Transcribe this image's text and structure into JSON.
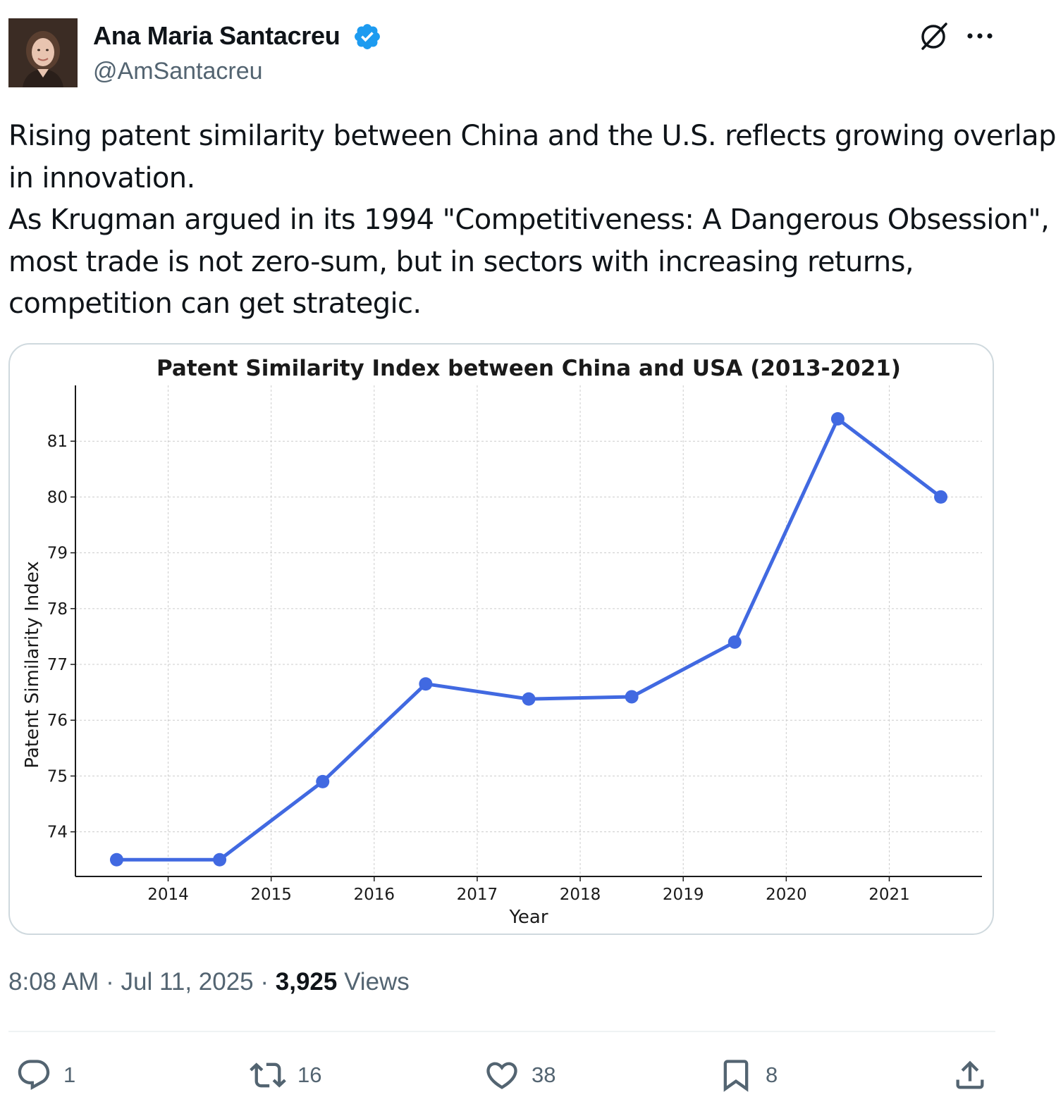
{
  "author": {
    "display_name": "Ana Maria Santacreu",
    "handle": "@AmSantacreu",
    "verified": true,
    "verified_color": "#1d9bf0"
  },
  "tweet": {
    "lines": [
      "Rising patent similarity between China and the U.S. reflects growing overlap",
      "in innovation.",
      "As Krugman argued in its 1994 \"Competitiveness: A Dangerous Obsession\",",
      "most trade is not zero-sum, but in sectors with increasing returns,",
      "competition can get strategic."
    ]
  },
  "meta": {
    "time": "8:08 AM",
    "separator": " · ",
    "date": "Jul 11, 2025",
    "views_count": "3,925",
    "views_label": "Views"
  },
  "actions": {
    "reply_count": "1",
    "repost_count": "16",
    "like_count": "38",
    "bookmark_count": "8"
  },
  "icons": {
    "grok": "grok-icon",
    "more": "more-icon",
    "reply": "reply-icon",
    "repost": "repost-icon",
    "like": "heart-icon",
    "bookmark": "bookmark-icon",
    "share": "share-icon"
  },
  "colors": {
    "text": "#0f1419",
    "secondary": "#536471",
    "line": "#4169e1"
  },
  "chart_data": {
    "type": "line",
    "title": "Patent Similarity Index between China and USA (2013-2021)",
    "xlabel": "Year",
    "ylabel": "Patent Similarity Index",
    "x": [
      2013.5,
      2014.5,
      2015.5,
      2016.5,
      2017.5,
      2018.5,
      2019.5,
      2020.5,
      2021.5
    ],
    "series": [
      {
        "name": "Patent Similarity Index",
        "values": [
          73.5,
          73.5,
          74.9,
          76.65,
          76.38,
          76.42,
          77.4,
          81.4,
          80.0
        ]
      }
    ],
    "xticks": [
      2014,
      2015,
      2016,
      2017,
      2018,
      2019,
      2020,
      2021
    ],
    "xtick_labels": [
      "2014",
      "2015",
      "2016",
      "2017",
      "2018",
      "2019",
      "2020",
      "2021"
    ],
    "yticks": [
      74,
      75,
      76,
      77,
      78,
      79,
      80,
      81
    ],
    "ytick_labels": [
      "74",
      "75",
      "76",
      "77",
      "78",
      "79",
      "80",
      "81"
    ],
    "xlim": [
      2013.1,
      2021.9
    ],
    "ylim": [
      73.2,
      82.0
    ],
    "grid": true
  }
}
